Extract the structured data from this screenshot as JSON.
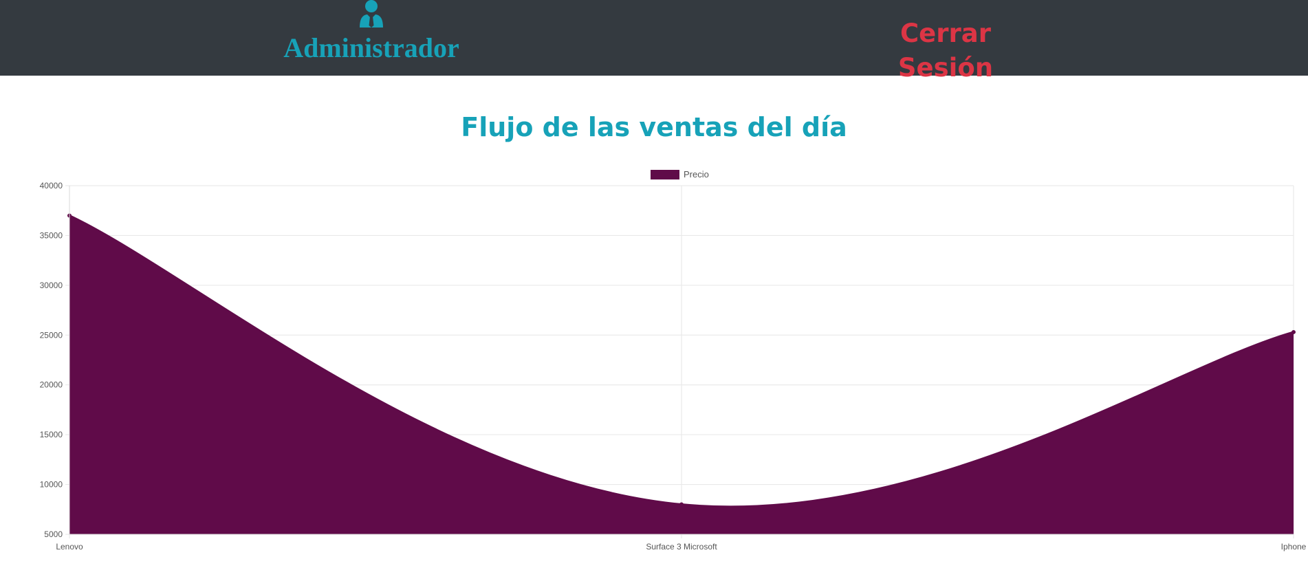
{
  "header": {
    "user_icon": "user-tie-icon",
    "admin_label": "Administrador",
    "logout_label": "Cerrar Sesión"
  },
  "main": {
    "title": "Flujo de las ventas del día"
  },
  "colors": {
    "header_bg": "#343a40",
    "accent": "#17a2b8",
    "danger": "#dc3545",
    "series": "#600b49"
  },
  "chart_data": {
    "type": "area",
    "categories": [
      "Lenovo",
      "Surface 3 Microsoft",
      "Iphone"
    ],
    "series": [
      {
        "name": "Precio",
        "values": [
          37000,
          8000,
          25300
        ]
      }
    ],
    "title": "",
    "xlabel": "",
    "ylabel": "",
    "ylim": [
      5000,
      40000
    ],
    "yticks": [
      5000,
      10000,
      15000,
      20000,
      25000,
      30000,
      35000,
      40000
    ],
    "grid": true,
    "legend_position": "top-center",
    "smooth": true
  }
}
